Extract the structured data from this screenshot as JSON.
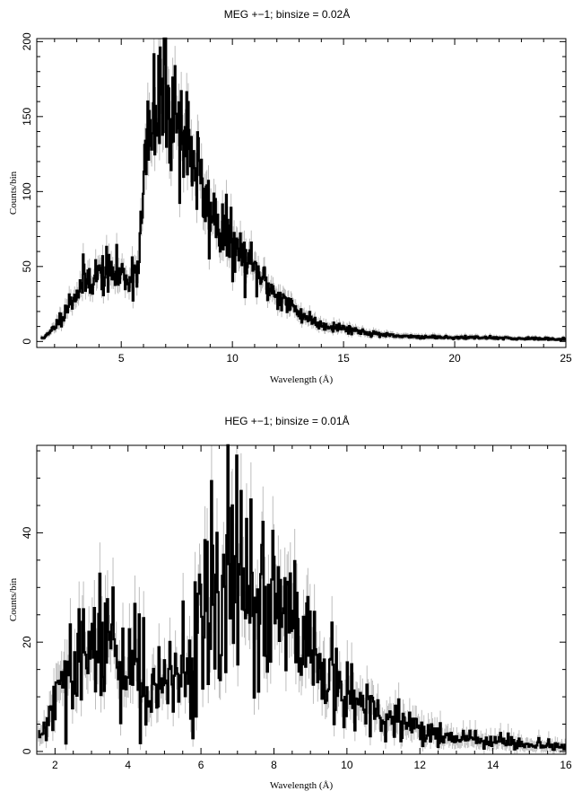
{
  "chart_data": [
    {
      "type": "line",
      "title": "MEG +−1; binsize = 0.02Å",
      "xlabel": "Wavelength (Å)",
      "ylabel": "Counts/bin",
      "xlim": [
        1.2,
        25
      ],
      "ylim": [
        -4,
        202
      ],
      "xticks": [
        5,
        10,
        15,
        20,
        25
      ],
      "yticks": [
        0,
        50,
        100,
        150,
        200
      ],
      "profile": [
        [
          1.5,
          2
        ],
        [
          1.8,
          6
        ],
        [
          2.2,
          14
        ],
        [
          2.6,
          24
        ],
        [
          3.0,
          33
        ],
        [
          3.5,
          42
        ],
        [
          4.0,
          45
        ],
        [
          4.5,
          46
        ],
        [
          5.0,
          44
        ],
        [
          5.4,
          43
        ],
        [
          5.7,
          48
        ],
        [
          5.9,
          75
        ],
        [
          6.1,
          125
        ],
        [
          6.4,
          143
        ],
        [
          6.7,
          152
        ],
        [
          7.0,
          155
        ],
        [
          7.3,
          152
        ],
        [
          7.6,
          145
        ],
        [
          8.0,
          133
        ],
        [
          8.3,
          122
        ],
        [
          8.6,
          100
        ],
        [
          8.9,
          88
        ],
        [
          9.2,
          80
        ],
        [
          9.6,
          73
        ],
        [
          10.0,
          64
        ],
        [
          10.5,
          55
        ],
        [
          11.0,
          47
        ],
        [
          11.5,
          39
        ],
        [
          12.0,
          31
        ],
        [
          12.5,
          25
        ],
        [
          13.0,
          19
        ],
        [
          13.5,
          15
        ],
        [
          14.0,
          11
        ],
        [
          15.0,
          9
        ],
        [
          16.0,
          6
        ],
        [
          17.0,
          4
        ],
        [
          18.0,
          3
        ],
        [
          20.0,
          2
        ],
        [
          22.0,
          2
        ],
        [
          25.0,
          1
        ]
      ],
      "spikes": [
        [
          6.75,
          196
        ],
        [
          6.95,
          185
        ],
        [
          7.3,
          176
        ],
        [
          6.2,
          160
        ],
        [
          9.25,
          95
        ],
        [
          3.3,
          58
        ]
      ],
      "noise": 0.16,
      "x_start": 1.4,
      "x_end": 25,
      "step": 0.035,
      "seed": 11
    },
    {
      "type": "line",
      "title": "HEG +−1; binsize = 0.01Å",
      "xlabel": "Wavelength (Å)",
      "ylabel": "Counts/bin",
      "xlim": [
        1.5,
        16
      ],
      "ylim": [
        -0.5,
        56
      ],
      "xticks": [
        2,
        4,
        6,
        8,
        10,
        12,
        14,
        16
      ],
      "yticks": [
        0,
        20,
        40
      ],
      "profile": [
        [
          1.5,
          2
        ],
        [
          1.8,
          5
        ],
        [
          2.1,
          10
        ],
        [
          2.5,
          15
        ],
        [
          3.0,
          18
        ],
        [
          3.5,
          19
        ],
        [
          4.0,
          17
        ],
        [
          4.4,
          13
        ],
        [
          4.8,
          11
        ],
        [
          5.2,
          12
        ],
        [
          5.6,
          16
        ],
        [
          6.0,
          24
        ],
        [
          6.4,
          28
        ],
        [
          6.8,
          30
        ],
        [
          7.2,
          27
        ],
        [
          7.6,
          27
        ],
        [
          8.0,
          26
        ],
        [
          8.5,
          22
        ],
        [
          9.0,
          17
        ],
        [
          9.5,
          13
        ],
        [
          10.0,
          10
        ],
        [
          10.5,
          8
        ],
        [
          11.0,
          6
        ],
        [
          11.5,
          5
        ],
        [
          12.0,
          4
        ],
        [
          12.5,
          3
        ],
        [
          13.0,
          2
        ],
        [
          14.0,
          1.3
        ],
        [
          15.0,
          0.7
        ],
        [
          16.0,
          0.4
        ]
      ],
      "spikes": [
        [
          6.75,
          56
        ],
        [
          6.85,
          45
        ],
        [
          6.45,
          40
        ],
        [
          7.7,
          42
        ],
        [
          3.6,
          30
        ],
        [
          4.2,
          27
        ]
      ],
      "noise": 0.34,
      "x_start": 1.55,
      "x_end": 16,
      "step": 0.03,
      "seed": 29
    }
  ]
}
